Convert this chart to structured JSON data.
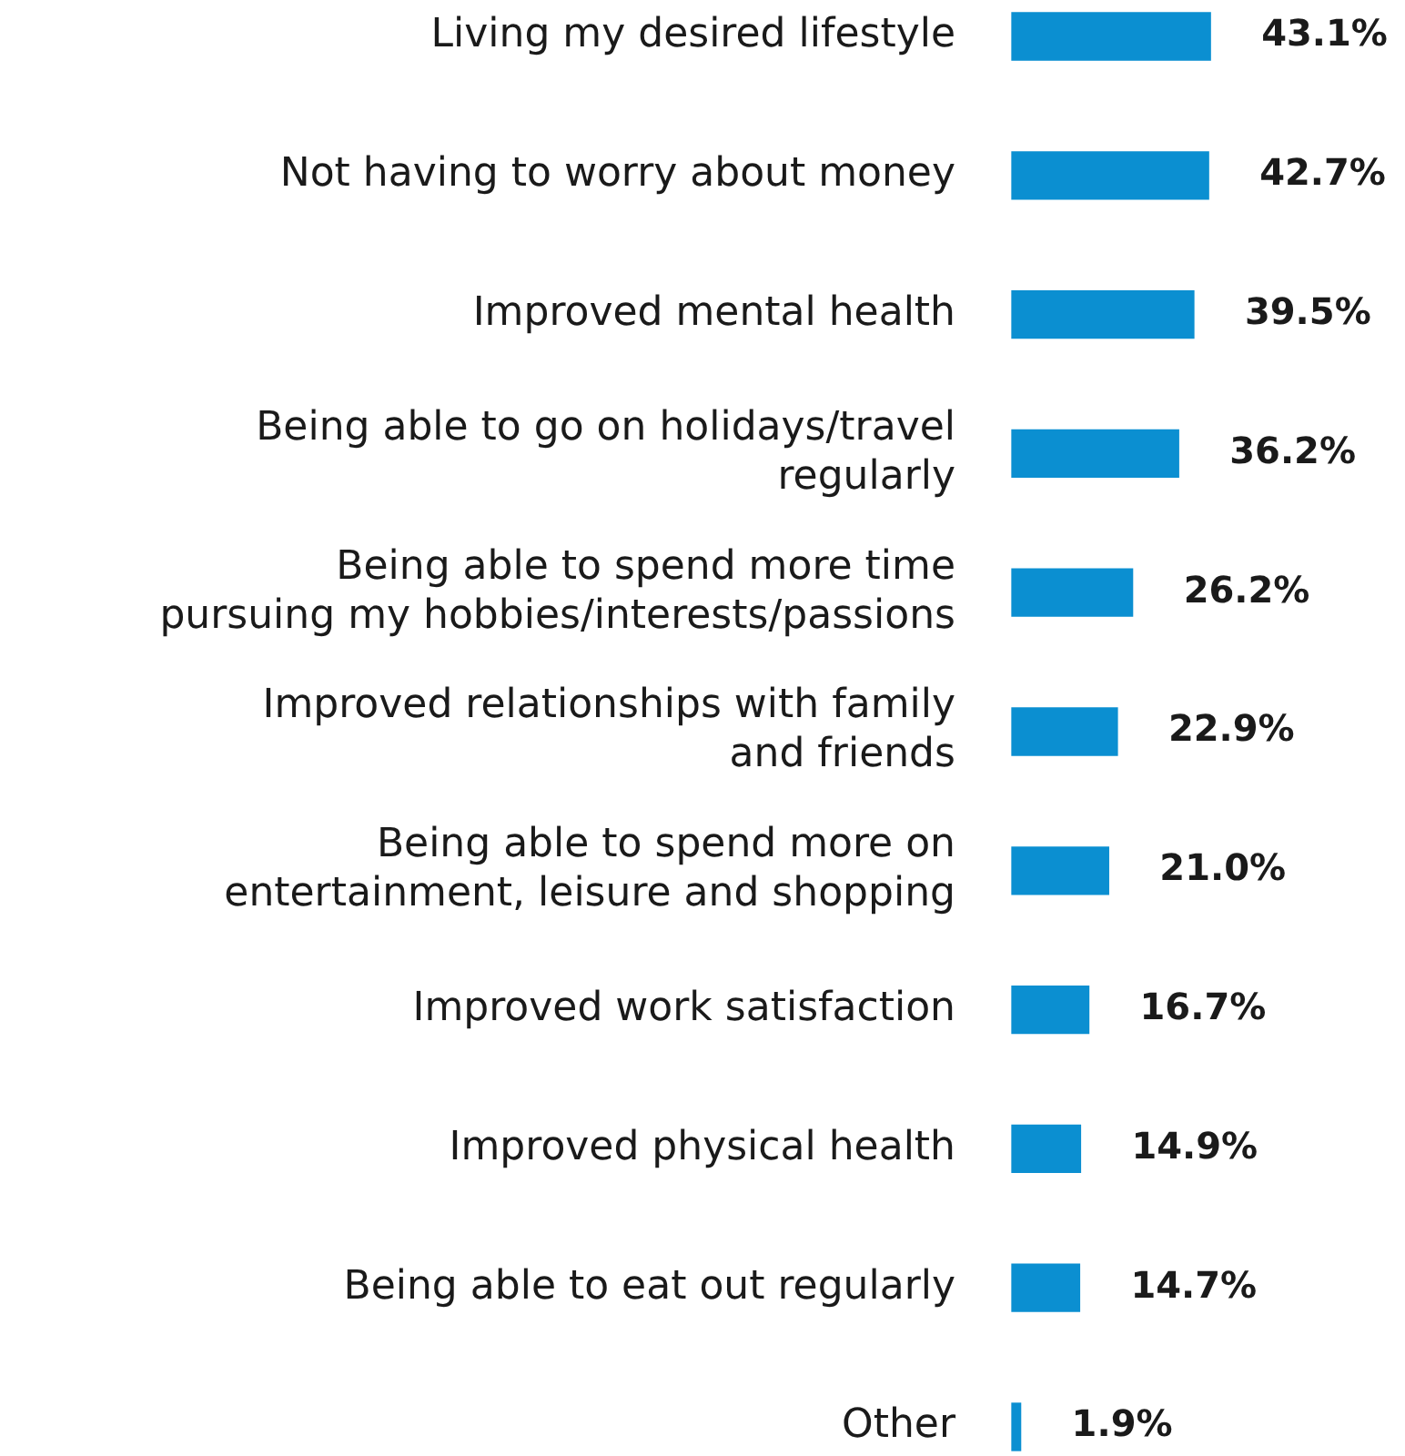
{
  "chart_data": {
    "type": "bar",
    "orientation": "horizontal",
    "data_labels": true,
    "categories": [
      "Living my desired lifestyle",
      "Not having to worry about money",
      "Improved mental health",
      "Being able to go on holidays/travel\nregularly",
      "Being able to spend more time\npursuing my hobbies/interests/passions",
      "Improved relationships with family\nand friends",
      "Being able to spend more on\nentertainment, leisure and shopping",
      "Improved work satisfaction",
      "Improved physical health",
      "Being able to eat out regularly",
      "Other"
    ],
    "values": [
      43.1,
      42.7,
      39.5,
      36.2,
      26.2,
      22.9,
      21.0,
      16.7,
      14.9,
      14.7,
      1.9
    ],
    "value_labels": [
      "43.1%",
      "42.7%",
      "39.5%",
      "36.2%",
      "26.2%",
      "22.9%",
      "21.0%",
      "16.7%",
      "14.9%",
      "14.7%",
      "1.9%"
    ],
    "color": "#0b8fd1"
  }
}
